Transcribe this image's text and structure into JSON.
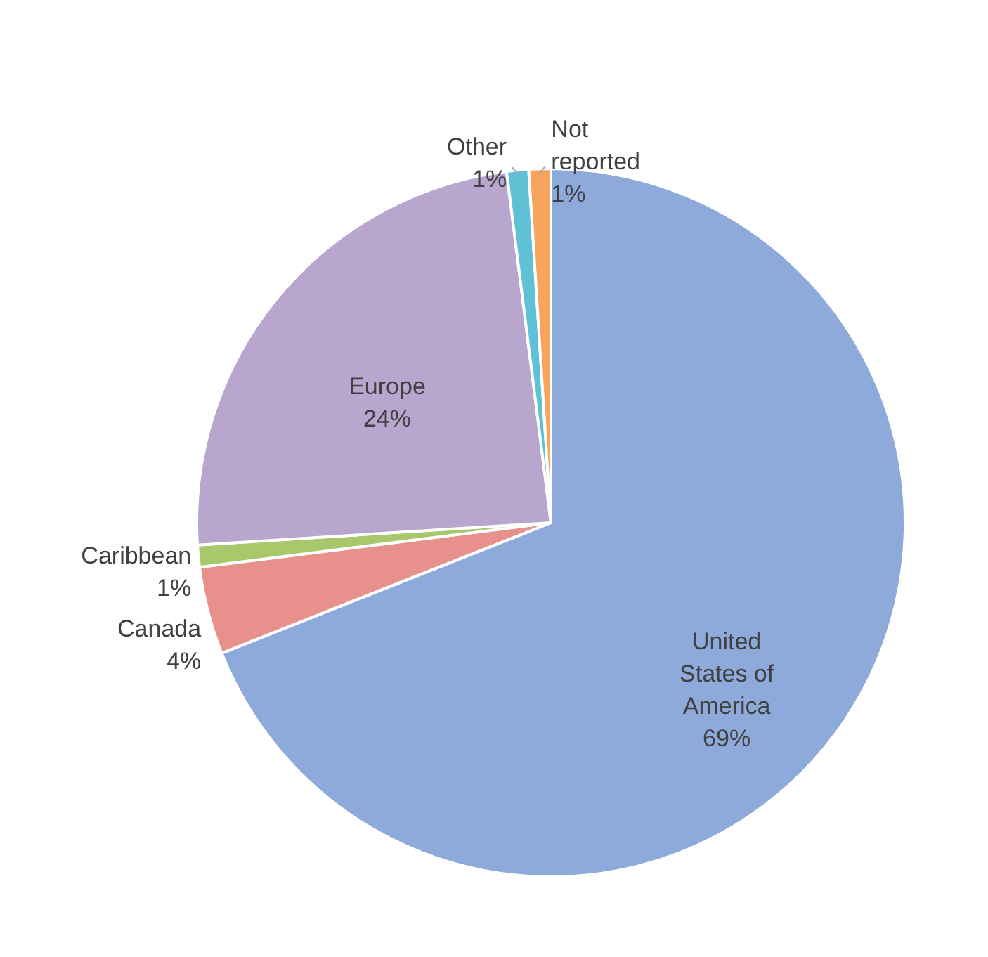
{
  "chart_data": {
    "type": "pie",
    "categories": [
      "United States of America",
      "Canada",
      "Caribbean",
      "Europe",
      "Other",
      "Not reported"
    ],
    "values": [
      69,
      4,
      1,
      24,
      1,
      1
    ],
    "value_labels": [
      "69%",
      "4%",
      "1%",
      "24%",
      "1%",
      "1%"
    ],
    "colors": [
      "#8eaadb",
      "#e8908c",
      "#a9c76b",
      "#b9a6cf",
      "#5fc1d6",
      "#f7a45c"
    ],
    "data_labels": true
  }
}
